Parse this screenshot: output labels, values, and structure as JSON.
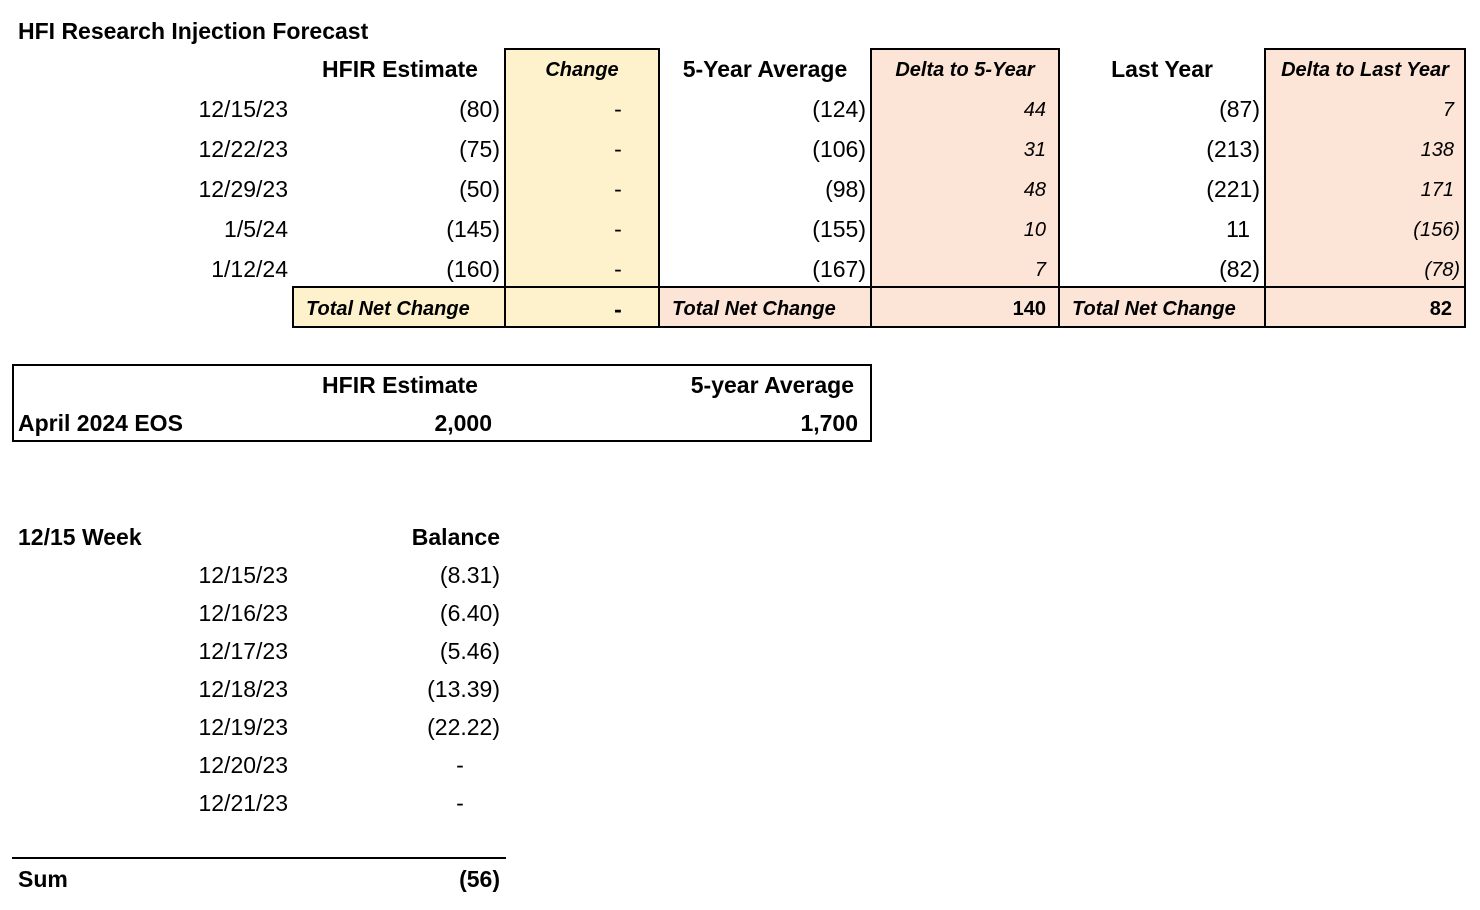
{
  "title": "HFI Research Injection Forecast",
  "forecast": {
    "headers": {
      "hfir_estimate": "HFIR Estimate",
      "change": "Change",
      "five_year_avg": "5-Year Average",
      "delta_5yr": "Delta to 5-Year",
      "last_year": "Last Year",
      "delta_last_year": "Delta to Last Year"
    },
    "rows": [
      {
        "date": "12/15/23",
        "hfir": "(80)",
        "change": "-",
        "avg5": "(124)",
        "delta5": "44",
        "last": "(87)",
        "delta_last": "7"
      },
      {
        "date": "12/22/23",
        "hfir": "(75)",
        "change": "-",
        "avg5": "(106)",
        "delta5": "31",
        "last": "(213)",
        "delta_last": "138"
      },
      {
        "date": "12/29/23",
        "hfir": "(50)",
        "change": "-",
        "avg5": "(98)",
        "delta5": "48",
        "last": "(221)",
        "delta_last": "171"
      },
      {
        "date": "1/5/24",
        "hfir": "(145)",
        "change": "-",
        "avg5": "(155)",
        "delta5": "10",
        "last": "11",
        "delta_last": "(156)"
      },
      {
        "date": "1/12/24",
        "hfir": "(160)",
        "change": "-",
        "avg5": "(167)",
        "delta5": "7",
        "last": "(82)",
        "delta_last": "(78)"
      }
    ],
    "totals": {
      "label1": "Total Net Change",
      "change": "-",
      "label2": "Total Net Change",
      "delta5": "140",
      "label3": "Total Net Change",
      "delta_last": "82"
    }
  },
  "eos": {
    "header_hfir": "HFIR Estimate",
    "header_avg": "5-year Average",
    "label": "April 2024 EOS",
    "hfir_value": "2,000",
    "avg_value": "1,700"
  },
  "week": {
    "title": "12/15 Week",
    "balance_header": "Balance",
    "rows": [
      {
        "date": "12/15/23",
        "balance": "(8.31)"
      },
      {
        "date": "12/16/23",
        "balance": "(6.40)"
      },
      {
        "date": "12/17/23",
        "balance": "(5.46)"
      },
      {
        "date": "12/18/23",
        "balance": "(13.39)"
      },
      {
        "date": "12/19/23",
        "balance": "(22.22)"
      },
      {
        "date": "12/20/23",
        "balance": "-"
      },
      {
        "date": "12/21/23",
        "balance": "-"
      }
    ],
    "sum_label": "Sum",
    "sum_value": "(56)"
  },
  "colors": {
    "change_fill": "#fef2cc",
    "delta_fill": "#fce4d6"
  }
}
